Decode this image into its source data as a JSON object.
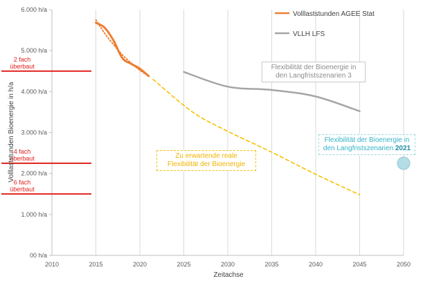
{
  "chart_data": {
    "type": "line",
    "xlabel": "Zeitachse",
    "ylabel": "Volllaststunden Bioenergie in h/a",
    "xlim": [
      2010,
      2050
    ],
    "ylim": [
      0,
      6000
    ],
    "x_ticks": [
      "2010",
      "2015",
      "2020",
      "2025",
      "2030",
      "2035",
      "2040",
      "2045",
      "2050"
    ],
    "y_ticks": [
      "00 h/a",
      "1.000 h/a",
      "2.000 h/a",
      "3.000 h/a",
      "4.000 h/a",
      "5.000 h/a",
      "6.000 h/a"
    ],
    "grid": "vertical",
    "legend": "top-right",
    "series": [
      {
        "name": "Volllaststunden AGEE Stat",
        "color": "#ed7d31",
        "style": "solid",
        "points": [
          [
            2015,
            5680
          ],
          [
            2016,
            5560
          ],
          [
            2017,
            5250
          ],
          [
            2018,
            4820
          ],
          [
            2019,
            4680
          ],
          [
            2020,
            4560
          ],
          [
            2021,
            4380
          ]
        ]
      },
      {
        "name": "",
        "color": "#ed7d31",
        "style": "dotted",
        "points": [
          [
            2015,
            5750
          ],
          [
            2016,
            5420
          ],
          [
            2017,
            5150
          ],
          [
            2018,
            4900
          ],
          [
            2019,
            4700
          ],
          [
            2020,
            4520
          ],
          [
            2021,
            4380
          ]
        ]
      },
      {
        "name": "VLLH LFS",
        "color": "#a5a5a5",
        "style": "solid",
        "points": [
          [
            2025,
            4480
          ],
          [
            2030,
            4120
          ],
          [
            2035,
            4040
          ],
          [
            2040,
            3880
          ],
          [
            2045,
            3520
          ]
        ]
      },
      {
        "name": "",
        "color": "#f5c000",
        "style": "dashed",
        "points": [
          [
            2021.5,
            4300
          ],
          [
            2026,
            3500
          ],
          [
            2030,
            3030
          ],
          [
            2035,
            2520
          ],
          [
            2040,
            1980
          ],
          [
            2045,
            1480
          ]
        ]
      }
    ],
    "markers": [
      {
        "label_line1": "2 fach",
        "label_line2": "überbaut",
        "value": 4500,
        "color": "#e0201b"
      },
      {
        "label_line1": "4 fach",
        "label_line2": "überbaut",
        "value": 2250,
        "color": "#e0201b"
      },
      {
        "label_line1": "6 fach",
        "label_line2": "überbaut",
        "value": 1500,
        "color": "#e0201b"
      }
    ],
    "point_2050": {
      "x": 2050,
      "y": 2250,
      "color": "#b4dde6"
    },
    "annotations": {
      "grey": [
        "Flexibilität der Bioenergie in",
        "den Langfristszenarien 3"
      ],
      "yellow": [
        "Zu erwartende reale",
        "Flexibilität der Bioenergie"
      ],
      "blue_line1": "Flexibilität der Bioenergie in",
      "blue_line2": "den Langfristszenarien",
      "blue_highlight": "2021"
    }
  }
}
